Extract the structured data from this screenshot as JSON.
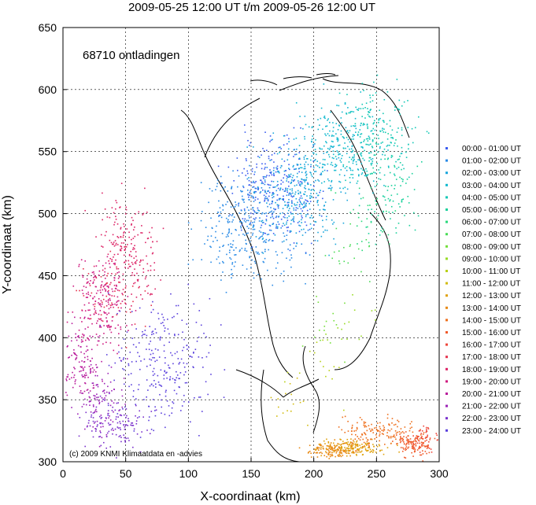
{
  "chart_data": {
    "type": "scatter",
    "title": "2009-05-25 12:00 UT t/m 2009-05-26 12:00 UT",
    "xlabel": "X-coordinaat (km)",
    "ylabel": "Y-coordinaat (km)",
    "xlim": [
      0,
      300
    ],
    "ylim": [
      300,
      650
    ],
    "x_ticks": [
      0,
      50,
      100,
      150,
      200,
      250,
      300
    ],
    "y_ticks": [
      300,
      350,
      400,
      450,
      500,
      550,
      600,
      650
    ],
    "grid": true,
    "legend_position": "right",
    "annotation_count": "68710 ontladingen",
    "credit": "(c) 2009  KNMI Klimaatdata en -advies",
    "series": [
      {
        "name": "00:00 - 01:00 UT",
        "color": "#3a5cf0",
        "center": [
          170,
          520
        ],
        "spread": [
          35,
          40
        ],
        "n": 260
      },
      {
        "name": "01:00 - 02:00 UT",
        "color": "#2a8be6",
        "center": [
          150,
          490
        ],
        "spread": [
          40,
          45
        ],
        "n": 360
      },
      {
        "name": "02:00 - 03:00 UT",
        "color": "#1aa6dc",
        "center": [
          190,
          520
        ],
        "spread": [
          35,
          40
        ],
        "n": 300
      },
      {
        "name": "03:00 - 04:00 UT",
        "color": "#12b9cf",
        "center": [
          220,
          555
        ],
        "spread": [
          35,
          35
        ],
        "n": 240
      },
      {
        "name": "04:00 - 05:00 UT",
        "color": "#13c8b6",
        "center": [
          250,
          565
        ],
        "spread": [
          30,
          40
        ],
        "n": 200
      },
      {
        "name": "05:00 - 06:00 UT",
        "color": "#1ad19b",
        "center": [
          260,
          520
        ],
        "spread": [
          25,
          40
        ],
        "n": 90
      },
      {
        "name": "06:00 - 07:00 UT",
        "color": "#2ad97c",
        "center": [
          240,
          500
        ],
        "spread": [
          25,
          30
        ],
        "n": 30
      },
      {
        "name": "07:00 - 08:00 UT",
        "color": "#4bdc58",
        "center": [
          230,
          470
        ],
        "spread": [
          25,
          30
        ],
        "n": 20
      },
      {
        "name": "08:00 - 09:00 UT",
        "color": "#73df3a",
        "center": [
          210,
          410
        ],
        "spread": [
          20,
          30
        ],
        "n": 15
      },
      {
        "name": "09:00 - 10:00 UT",
        "color": "#98db24",
        "center": [
          230,
          410
        ],
        "spread": [
          20,
          20
        ],
        "n": 15
      },
      {
        "name": "10:00 - 11:00 UT",
        "color": "#b8d016",
        "center": [
          200,
          380
        ],
        "spread": [
          20,
          25
        ],
        "n": 15
      },
      {
        "name": "11:00 - 12:00 UT",
        "color": "#d1bb0f",
        "center": [
          180,
          350
        ],
        "spread": [
          20,
          20
        ],
        "n": 15
      },
      {
        "name": "12:00 - 13:00 UT",
        "color": "#e0a20d",
        "center": [
          230,
          312
        ],
        "spread": [
          25,
          6
        ],
        "n": 160
      },
      {
        "name": "13:00 - 14:00 UT",
        "color": "#e88812",
        "center": [
          215,
          310
        ],
        "spread": [
          20,
          6
        ],
        "n": 120
      },
      {
        "name": "14:00 - 15:00 UT",
        "color": "#ee6f1c",
        "center": [
          250,
          325
        ],
        "spread": [
          30,
          12
        ],
        "n": 140
      },
      {
        "name": "15:00 - 16:00 UT",
        "color": "#f05a2a",
        "center": [
          280,
          315
        ],
        "spread": [
          15,
          10
        ],
        "n": 130
      },
      {
        "name": "16:00 - 17:00 UT",
        "color": "#ee473b",
        "center": [
          290,
          320
        ],
        "spread": [
          10,
          10
        ],
        "n": 40
      },
      {
        "name": "17:00 - 18:00 UT",
        "color": "#e6344f",
        "center": [
          40,
          440
        ],
        "spread": [
          25,
          40
        ],
        "n": 60
      },
      {
        "name": "18:00 - 19:00 UT",
        "color": "#dc2466",
        "center": [
          50,
          470
        ],
        "spread": [
          25,
          40
        ],
        "n": 200
      },
      {
        "name": "19:00 - 20:00 UT",
        "color": "#cf197f",
        "center": [
          30,
          430
        ],
        "spread": [
          20,
          35
        ],
        "n": 200
      },
      {
        "name": "20:00 - 21:00 UT",
        "color": "#b81a9b",
        "center": [
          15,
          380
        ],
        "spread": [
          15,
          30
        ],
        "n": 120
      },
      {
        "name": "21:00 - 22:00 UT",
        "color": "#9c23b6",
        "center": [
          30,
          350
        ],
        "spread": [
          20,
          30
        ],
        "n": 100
      },
      {
        "name": "22:00 - 23:00 UT",
        "color": "#7a30cc",
        "center": [
          40,
          330
        ],
        "spread": [
          25,
          20
        ],
        "n": 120
      },
      {
        "name": "23:00 - 24:00 UT",
        "color": "#5a40dc",
        "center": [
          80,
          380
        ],
        "spread": [
          40,
          50
        ],
        "n": 260
      }
    ]
  }
}
